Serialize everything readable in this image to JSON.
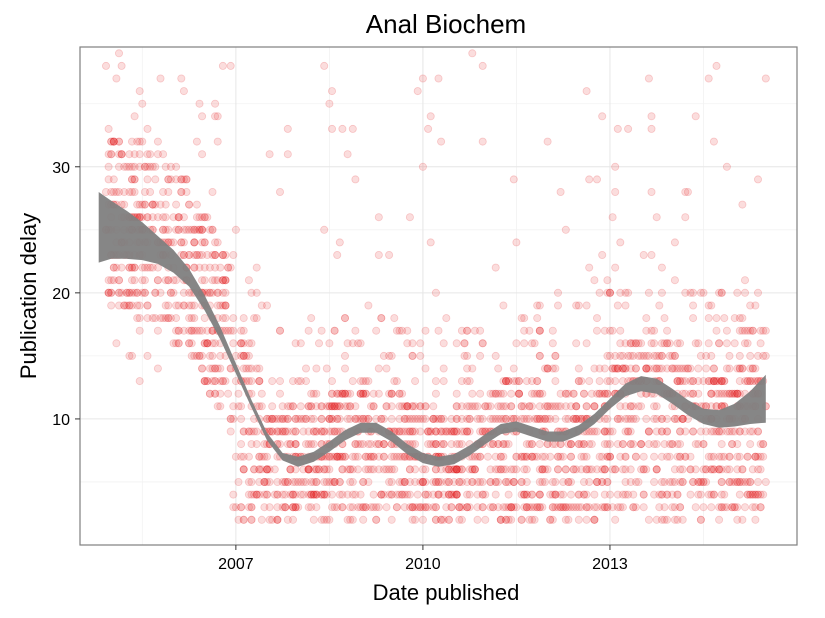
{
  "chart_data": {
    "type": "scatter",
    "title": "Anal Biochem",
    "xlabel": "Date published",
    "ylabel": "Publication delay",
    "x_ticks": [
      "2007",
      "2010",
      "2013"
    ],
    "y_ticks": [
      10,
      20,
      30
    ],
    "xlim": [
      2004.5,
      2016.0
    ],
    "ylim": [
      0,
      39.5
    ],
    "grid": true,
    "point_color": "#e31a1c",
    "point_opacity": 0.15,
    "smooth_color": "#7f7f7f",
    "smooth_band": {
      "x": [
        2004.8,
        2005.0,
        2005.25,
        2005.5,
        2005.75,
        2006.0,
        2006.25,
        2006.5,
        2006.75,
        2007.0,
        2007.25,
        2007.5,
        2007.75,
        2008.0,
        2008.25,
        2008.5,
        2008.75,
        2009.0,
        2009.25,
        2009.5,
        2009.75,
        2010.0,
        2010.25,
        2010.5,
        2010.75,
        2011.0,
        2011.25,
        2011.5,
        2011.75,
        2012.0,
        2012.25,
        2012.5,
        2012.75,
        2013.0,
        2013.25,
        2013.5,
        2013.75,
        2014.0,
        2014.25,
        2014.5,
        2014.75,
        2015.0,
        2015.25,
        2015.5
      ],
      "y": [
        25.2,
        25.0,
        24.6,
        24.1,
        23.4,
        22.5,
        21.2,
        19.2,
        16.8,
        14.0,
        11.2,
        8.6,
        7.0,
        6.6,
        7.0,
        7.8,
        8.7,
        9.3,
        9.3,
        8.6,
        7.6,
        6.9,
        6.6,
        6.8,
        7.5,
        8.4,
        9.2,
        9.4,
        9.0,
        8.6,
        8.6,
        9.1,
        10.0,
        11.2,
        12.3,
        12.8,
        12.6,
        11.8,
        10.9,
        10.2,
        10.0,
        10.3,
        10.9,
        11.6
      ],
      "lower": [
        22.4,
        22.7,
        22.7,
        22.6,
        22.3,
        21.6,
        20.5,
        18.6,
        16.3,
        13.6,
        10.9,
        8.3,
        6.7,
        6.2,
        6.6,
        7.4,
        8.3,
        8.9,
        8.9,
        8.2,
        7.2,
        6.5,
        6.2,
        6.4,
        7.1,
        8.0,
        8.8,
        9.0,
        8.6,
        8.2,
        8.2,
        8.7,
        9.6,
        10.8,
        11.8,
        12.2,
        12.0,
        11.2,
        10.3,
        9.6,
        9.3,
        9.4,
        9.6,
        9.7
      ],
      "upper": [
        28.0,
        27.3,
        26.5,
        25.6,
        24.5,
        23.4,
        21.9,
        19.8,
        17.3,
        14.4,
        11.5,
        8.9,
        7.3,
        7.0,
        7.4,
        8.2,
        9.1,
        9.7,
        9.7,
        9.0,
        8.0,
        7.3,
        7.0,
        7.2,
        7.9,
        8.8,
        9.6,
        9.8,
        9.4,
        9.0,
        9.0,
        9.5,
        10.4,
        11.6,
        12.8,
        13.4,
        13.2,
        12.4,
        11.5,
        10.8,
        10.7,
        11.2,
        12.2,
        13.5
      ]
    }
  }
}
